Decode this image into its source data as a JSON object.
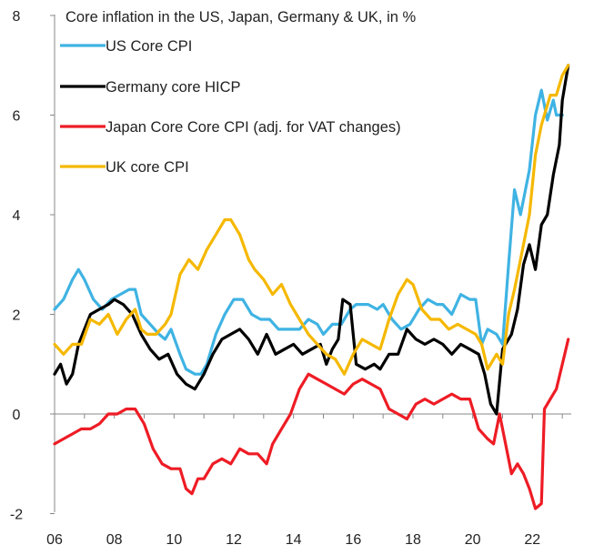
{
  "chart_data": {
    "type": "line",
    "title": "Core inflation in the US, Japan, Germany & UK,  in %",
    "xlabel": "",
    "ylabel": "",
    "xlim": [
      2006,
      2023.3
    ],
    "ylim": [
      -2,
      8
    ],
    "y_ticks": [
      -2,
      0,
      2,
      4,
      6,
      8
    ],
    "y_tick_labels": [
      "-2",
      "0",
      "2",
      "4",
      "6",
      "8"
    ],
    "x_ticks": [
      2006,
      2008,
      2010,
      2012,
      2014,
      2016,
      2018,
      2020,
      2022
    ],
    "x_tick_labels": [
      "06",
      "08",
      "10",
      "12",
      "14",
      "16",
      "18",
      "20",
      "22"
    ],
    "grid": false,
    "legend_position": "top-left",
    "series": [
      {
        "name": "US Core CPI",
        "color": "#3fb3e3",
        "points": [
          [
            2006.0,
            2.1
          ],
          [
            2006.3,
            2.3
          ],
          [
            2006.6,
            2.7
          ],
          [
            2006.8,
            2.9
          ],
          [
            2007.0,
            2.7
          ],
          [
            2007.3,
            2.3
          ],
          [
            2007.6,
            2.1
          ],
          [
            2007.9,
            2.3
          ],
          [
            2008.2,
            2.4
          ],
          [
            2008.5,
            2.5
          ],
          [
            2008.7,
            2.5
          ],
          [
            2008.9,
            2.0
          ],
          [
            2009.2,
            1.8
          ],
          [
            2009.5,
            1.6
          ],
          [
            2009.7,
            1.5
          ],
          [
            2009.9,
            1.7
          ],
          [
            2010.2,
            1.2
          ],
          [
            2010.4,
            0.9
          ],
          [
            2010.7,
            0.8
          ],
          [
            2010.9,
            0.8
          ],
          [
            2011.1,
            1.0
          ],
          [
            2011.4,
            1.6
          ],
          [
            2011.7,
            2.0
          ],
          [
            2012.0,
            2.3
          ],
          [
            2012.3,
            2.3
          ],
          [
            2012.6,
            2.0
          ],
          [
            2012.9,
            1.9
          ],
          [
            2013.2,
            1.9
          ],
          [
            2013.5,
            1.7
          ],
          [
            2013.9,
            1.7
          ],
          [
            2014.2,
            1.7
          ],
          [
            2014.5,
            1.9
          ],
          [
            2014.8,
            1.8
          ],
          [
            2015.0,
            1.6
          ],
          [
            2015.3,
            1.8
          ],
          [
            2015.6,
            1.8
          ],
          [
            2015.9,
            2.1
          ],
          [
            2016.1,
            2.2
          ],
          [
            2016.5,
            2.2
          ],
          [
            2016.8,
            2.1
          ],
          [
            2017.0,
            2.2
          ],
          [
            2017.3,
            1.9
          ],
          [
            2017.6,
            1.7
          ],
          [
            2017.9,
            1.8
          ],
          [
            2018.2,
            2.1
          ],
          [
            2018.5,
            2.3
          ],
          [
            2018.8,
            2.2
          ],
          [
            2019.0,
            2.2
          ],
          [
            2019.3,
            2.0
          ],
          [
            2019.6,
            2.4
          ],
          [
            2019.9,
            2.3
          ],
          [
            2020.1,
            2.3
          ],
          [
            2020.3,
            1.4
          ],
          [
            2020.5,
            1.7
          ],
          [
            2020.8,
            1.6
          ],
          [
            2021.0,
            1.4
          ],
          [
            2021.2,
            3.0
          ],
          [
            2021.4,
            4.5
          ],
          [
            2021.6,
            4.0
          ],
          [
            2021.9,
            4.9
          ],
          [
            2022.1,
            6.0
          ],
          [
            2022.3,
            6.5
          ],
          [
            2022.5,
            5.9
          ],
          [
            2022.7,
            6.3
          ],
          [
            2022.8,
            6.0
          ],
          [
            2023.0,
            6.0
          ]
        ]
      },
      {
        "name": "Germany core HICP",
        "color": "#000000",
        "points": [
          [
            2006.0,
            0.8
          ],
          [
            2006.2,
            1.0
          ],
          [
            2006.4,
            0.6
          ],
          [
            2006.6,
            0.8
          ],
          [
            2006.8,
            1.4
          ],
          [
            2007.0,
            1.7
          ],
          [
            2007.2,
            2.0
          ],
          [
            2007.5,
            2.1
          ],
          [
            2007.8,
            2.2
          ],
          [
            2008.0,
            2.3
          ],
          [
            2008.3,
            2.2
          ],
          [
            2008.6,
            2.0
          ],
          [
            2008.9,
            1.6
          ],
          [
            2009.2,
            1.3
          ],
          [
            2009.5,
            1.1
          ],
          [
            2009.8,
            1.2
          ],
          [
            2010.1,
            0.8
          ],
          [
            2010.4,
            0.6
          ],
          [
            2010.7,
            0.5
          ],
          [
            2011.0,
            0.8
          ],
          [
            2011.3,
            1.2
          ],
          [
            2011.6,
            1.5
          ],
          [
            2011.9,
            1.6
          ],
          [
            2012.2,
            1.7
          ],
          [
            2012.5,
            1.5
          ],
          [
            2012.8,
            1.2
          ],
          [
            2013.1,
            1.6
          ],
          [
            2013.4,
            1.2
          ],
          [
            2013.7,
            1.3
          ],
          [
            2014.0,
            1.4
          ],
          [
            2014.3,
            1.2
          ],
          [
            2014.6,
            1.3
          ],
          [
            2014.9,
            1.4
          ],
          [
            2015.1,
            1.0
          ],
          [
            2015.3,
            1.3
          ],
          [
            2015.5,
            1.5
          ],
          [
            2015.65,
            2.3
          ],
          [
            2015.9,
            2.2
          ],
          [
            2016.1,
            1.0
          ],
          [
            2016.4,
            0.9
          ],
          [
            2016.7,
            1.0
          ],
          [
            2016.9,
            0.9
          ],
          [
            2017.2,
            1.2
          ],
          [
            2017.5,
            1.2
          ],
          [
            2017.8,
            1.7
          ],
          [
            2018.1,
            1.5
          ],
          [
            2018.4,
            1.4
          ],
          [
            2018.7,
            1.5
          ],
          [
            2019.0,
            1.4
          ],
          [
            2019.3,
            1.2
          ],
          [
            2019.6,
            1.4
          ],
          [
            2019.9,
            1.3
          ],
          [
            2020.2,
            1.2
          ],
          [
            2020.4,
            0.8
          ],
          [
            2020.6,
            0.2
          ],
          [
            2020.8,
            0.0
          ],
          [
            2021.0,
            1.3
          ],
          [
            2021.3,
            1.6
          ],
          [
            2021.5,
            2.1
          ],
          [
            2021.7,
            3.0
          ],
          [
            2021.9,
            3.4
          ],
          [
            2022.1,
            2.9
          ],
          [
            2022.3,
            3.8
          ],
          [
            2022.5,
            4.0
          ],
          [
            2022.7,
            4.8
          ],
          [
            2022.9,
            5.4
          ],
          [
            2023.0,
            6.3
          ],
          [
            2023.2,
            7.0
          ]
        ]
      },
      {
        "name": "Japan Core Core CPI (adj. for VAT changes)",
        "color": "#ee1c25",
        "points": [
          [
            2006.0,
            -0.6
          ],
          [
            2006.3,
            -0.5
          ],
          [
            2006.6,
            -0.4
          ],
          [
            2006.9,
            -0.3
          ],
          [
            2007.2,
            -0.3
          ],
          [
            2007.5,
            -0.2
          ],
          [
            2007.8,
            0.0
          ],
          [
            2008.1,
            0.0
          ],
          [
            2008.4,
            0.1
          ],
          [
            2008.7,
            0.1
          ],
          [
            2009.0,
            -0.2
          ],
          [
            2009.3,
            -0.7
          ],
          [
            2009.6,
            -1.0
          ],
          [
            2009.9,
            -1.1
          ],
          [
            2010.2,
            -1.1
          ],
          [
            2010.4,
            -1.5
          ],
          [
            2010.6,
            -1.6
          ],
          [
            2010.8,
            -1.3
          ],
          [
            2011.0,
            -1.3
          ],
          [
            2011.3,
            -1.0
          ],
          [
            2011.6,
            -0.9
          ],
          [
            2011.9,
            -1.0
          ],
          [
            2012.2,
            -0.7
          ],
          [
            2012.5,
            -0.8
          ],
          [
            2012.8,
            -0.8
          ],
          [
            2013.1,
            -1.0
          ],
          [
            2013.3,
            -0.6
          ],
          [
            2013.6,
            -0.3
          ],
          [
            2013.9,
            0.0
          ],
          [
            2014.2,
            0.5
          ],
          [
            2014.5,
            0.8
          ],
          [
            2014.8,
            0.7
          ],
          [
            2015.1,
            0.6
          ],
          [
            2015.4,
            0.5
          ],
          [
            2015.7,
            0.4
          ],
          [
            2016.0,
            0.6
          ],
          [
            2016.3,
            0.7
          ],
          [
            2016.6,
            0.6
          ],
          [
            2016.9,
            0.5
          ],
          [
            2017.2,
            0.1
          ],
          [
            2017.5,
            0.0
          ],
          [
            2017.8,
            -0.1
          ],
          [
            2018.1,
            0.2
          ],
          [
            2018.4,
            0.3
          ],
          [
            2018.7,
            0.2
          ],
          [
            2019.0,
            0.3
          ],
          [
            2019.3,
            0.4
          ],
          [
            2019.6,
            0.3
          ],
          [
            2019.9,
            0.3
          ],
          [
            2020.2,
            -0.3
          ],
          [
            2020.5,
            -0.5
          ],
          [
            2020.7,
            -0.6
          ],
          [
            2020.9,
            0.0
          ],
          [
            2021.1,
            -0.6
          ],
          [
            2021.3,
            -1.2
          ],
          [
            2021.5,
            -1.0
          ],
          [
            2021.7,
            -1.2
          ],
          [
            2021.9,
            -1.5
          ],
          [
            2022.1,
            -1.9
          ],
          [
            2022.3,
            -1.8
          ],
          [
            2022.4,
            0.1
          ],
          [
            2022.6,
            0.3
          ],
          [
            2022.8,
            0.5
          ],
          [
            2023.0,
            1.0
          ],
          [
            2023.2,
            1.5
          ]
        ]
      },
      {
        "name": "UK core CPI",
        "color": "#f5b800",
        "points": [
          [
            2006.0,
            1.4
          ],
          [
            2006.3,
            1.2
          ],
          [
            2006.6,
            1.4
          ],
          [
            2006.9,
            1.4
          ],
          [
            2007.2,
            1.9
          ],
          [
            2007.5,
            1.8
          ],
          [
            2007.8,
            2.0
          ],
          [
            2008.1,
            1.6
          ],
          [
            2008.4,
            1.9
          ],
          [
            2008.7,
            2.1
          ],
          [
            2008.9,
            1.7
          ],
          [
            2009.1,
            1.6
          ],
          [
            2009.4,
            1.6
          ],
          [
            2009.7,
            1.8
          ],
          [
            2009.9,
            2.0
          ],
          [
            2010.2,
            2.8
          ],
          [
            2010.5,
            3.1
          ],
          [
            2010.8,
            2.9
          ],
          [
            2011.1,
            3.3
          ],
          [
            2011.4,
            3.6
          ],
          [
            2011.7,
            3.9
          ],
          [
            2011.9,
            3.9
          ],
          [
            2012.2,
            3.6
          ],
          [
            2012.5,
            3.1
          ],
          [
            2012.7,
            2.9
          ],
          [
            2013.0,
            2.7
          ],
          [
            2013.3,
            2.4
          ],
          [
            2013.6,
            2.6
          ],
          [
            2013.9,
            2.2
          ],
          [
            2014.2,
            1.9
          ],
          [
            2014.5,
            1.6
          ],
          [
            2014.8,
            1.4
          ],
          [
            2015.1,
            1.2
          ],
          [
            2015.4,
            1.1
          ],
          [
            2015.7,
            0.8
          ],
          [
            2016.0,
            1.2
          ],
          [
            2016.3,
            1.5
          ],
          [
            2016.6,
            1.4
          ],
          [
            2016.9,
            1.3
          ],
          [
            2017.2,
            1.9
          ],
          [
            2017.5,
            2.4
          ],
          [
            2017.8,
            2.7
          ],
          [
            2018.0,
            2.6
          ],
          [
            2018.3,
            2.1
          ],
          [
            2018.6,
            1.9
          ],
          [
            2018.9,
            1.9
          ],
          [
            2019.2,
            1.7
          ],
          [
            2019.5,
            1.8
          ],
          [
            2019.8,
            1.7
          ],
          [
            2020.1,
            1.6
          ],
          [
            2020.3,
            1.4
          ],
          [
            2020.5,
            0.9
          ],
          [
            2020.8,
            1.2
          ],
          [
            2021.0,
            1.0
          ],
          [
            2021.2,
            2.0
          ],
          [
            2021.4,
            2.5
          ],
          [
            2021.6,
            3.1
          ],
          [
            2021.9,
            4.0
          ],
          [
            2022.1,
            5.2
          ],
          [
            2022.3,
            5.8
          ],
          [
            2022.6,
            6.4
          ],
          [
            2022.8,
            6.4
          ],
          [
            2023.0,
            6.8
          ],
          [
            2023.2,
            7.0
          ]
        ]
      }
    ]
  }
}
